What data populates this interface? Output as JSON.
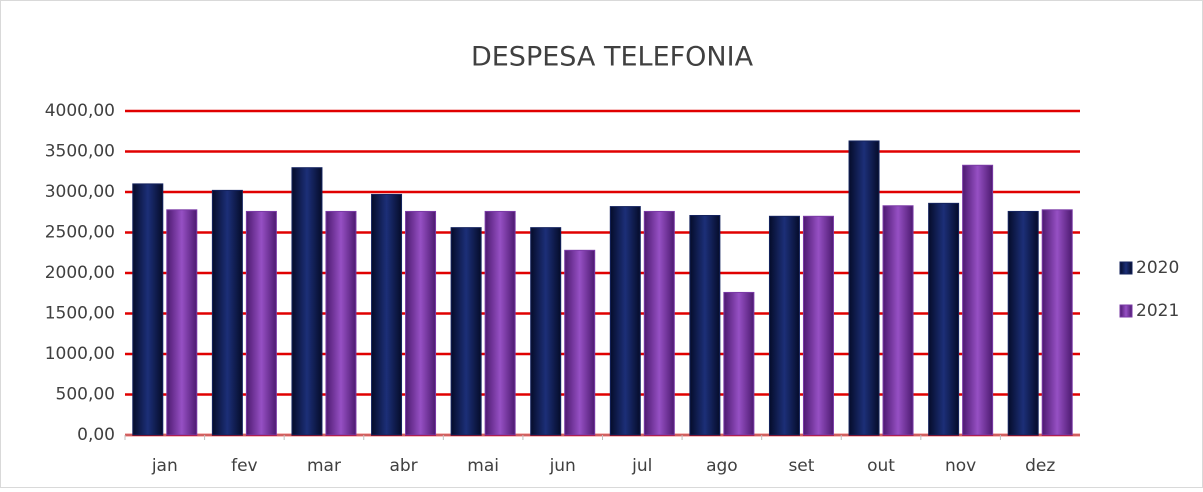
{
  "chart_data": {
    "type": "bar",
    "title": "DESPESA TELEFONIA",
    "categories": [
      "jan",
      "fev",
      "mar",
      "abr",
      "mai",
      "jun",
      "jul",
      "ago",
      "set",
      "out",
      "nov",
      "dez"
    ],
    "series": [
      {
        "name": "2020",
        "color": "#14235e",
        "values": [
          3100,
          3020,
          3300,
          2970,
          2560,
          2560,
          2820,
          2710,
          2700,
          3630,
          2860,
          2760
        ]
      },
      {
        "name": "2021",
        "color": "#7a3aa6",
        "values": [
          2780,
          2760,
          2760,
          2760,
          2760,
          2280,
          2760,
          1760,
          2700,
          2830,
          3330,
          2780
        ]
      }
    ],
    "ylim": [
      0,
      4000
    ],
    "yticks": [
      {
        "value": 0,
        "label": "0,00"
      },
      {
        "value": 500,
        "label": "500,00"
      },
      {
        "value": 1000,
        "label": "1000,00"
      },
      {
        "value": 1500,
        "label": "1500,00"
      },
      {
        "value": 2000,
        "label": "2000,00"
      },
      {
        "value": 2500,
        "label": "2500,00"
      },
      {
        "value": 3000,
        "label": "3000,00"
      },
      {
        "value": 3500,
        "label": "3500,00"
      },
      {
        "value": 4000,
        "label": "4000,00"
      }
    ],
    "grid": true,
    "grid_color": "#e00000",
    "legend": "right"
  }
}
